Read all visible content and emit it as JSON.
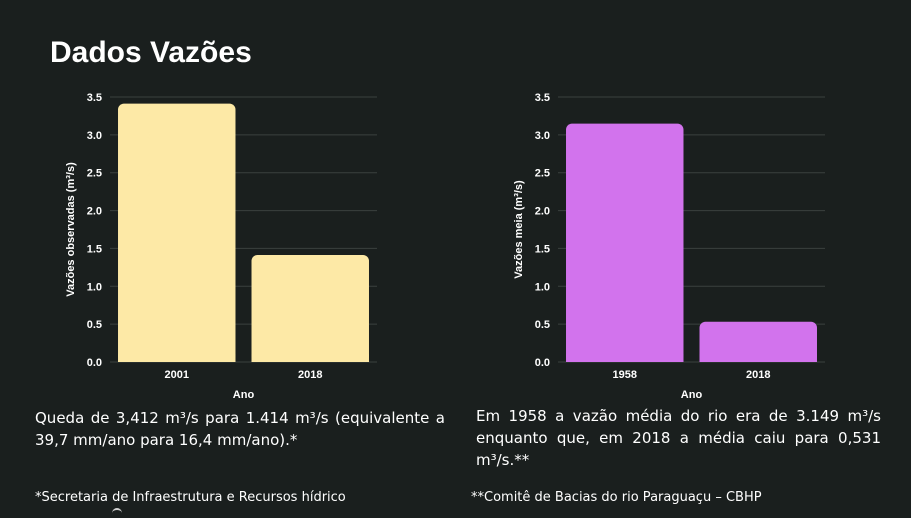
{
  "title": "Dados Vazões",
  "chart_data": [
    {
      "type": "bar",
      "categories": [
        "2001",
        "2018"
      ],
      "values": [
        3.412,
        1.414
      ],
      "xlabel": "Ano",
      "ylabel": "Vazões observadas (m³/s)",
      "ylim": [
        0,
        3.5
      ],
      "yticks": [
        "0.0",
        "0.5",
        "1.0",
        "1.5",
        "2.0",
        "2.5",
        "3.0",
        "3.5"
      ],
      "color": "#fde9a6",
      "grid": true
    },
    {
      "type": "bar",
      "categories": [
        "1958",
        "2018"
      ],
      "values": [
        3.149,
        0.531
      ],
      "xlabel": "Ano",
      "ylabel": "Vazões meia (m³/s)",
      "ylim": [
        0,
        3.5
      ],
      "yticks": [
        "0.0",
        "0.5",
        "1.0",
        "1.5",
        "2.0",
        "2.5",
        "3.0",
        "3.5"
      ],
      "color": "#d273ed",
      "grid": true
    }
  ],
  "captions": {
    "left": "Queda de 3,412 m³/s para 1.414 m³/s (equivalente a 39,7 mm/ano para 16,4 mm/ano).*",
    "right": "Em 1958 a vazão média do rio era de 3.149 m³/s enquanto que, em 2018 a média caiu para 0,531 m³/s.**"
  },
  "footnotes": {
    "left": "*Secretaria de Infraestrutura e Recursos hídrico",
    "right": "**Comitê de Bacias do rio Paraguaçu – CBHP"
  }
}
